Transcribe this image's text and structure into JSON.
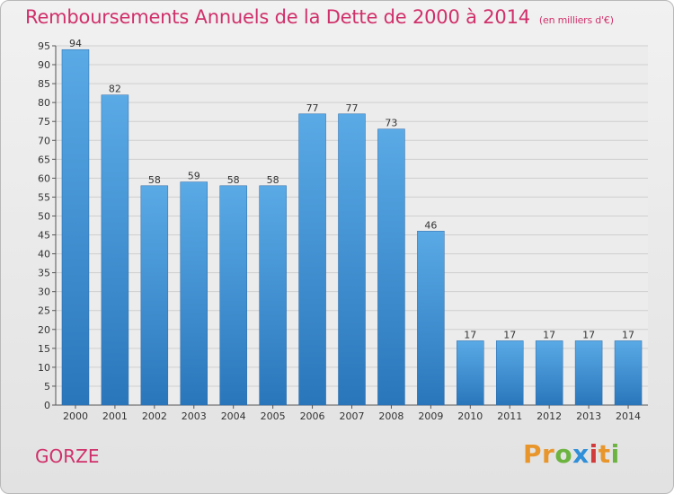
{
  "header": {
    "title": "Remboursements Annuels de la Dette de 2000 à 2014",
    "unit_note": "(en milliers d'€)"
  },
  "footer": {
    "commune": "GORZE",
    "brand": "Proxiti"
  },
  "colors": {
    "title": "#d0306a",
    "bar_top": "#5aaae6",
    "bar_bottom": "#2a76bb",
    "grid": "#cfcfcf",
    "brand_letters": [
      "#e8962c",
      "#e8962c",
      "#6cb33f",
      "#2f8fd8",
      "#d23b3b",
      "#e8962c",
      "#6cb33f"
    ]
  },
  "chart_data": {
    "type": "bar",
    "title": "Remboursements Annuels de la Dette de 2000 à 2014",
    "subtitle": "(en milliers d'€)",
    "xlabel": "",
    "ylabel": "",
    "categories": [
      "2000",
      "2001",
      "2002",
      "2003",
      "2004",
      "2005",
      "2006",
      "2007",
      "2008",
      "2009",
      "2010",
      "2011",
      "2012",
      "2013",
      "2014"
    ],
    "values": [
      94,
      82,
      58,
      59,
      58,
      58,
      77,
      77,
      73,
      46,
      17,
      17,
      17,
      17,
      17
    ],
    "ylim": [
      0,
      95
    ],
    "yticks": [
      0,
      5,
      10,
      15,
      20,
      25,
      30,
      35,
      40,
      45,
      50,
      55,
      60,
      65,
      70,
      75,
      80,
      85,
      90,
      95
    ],
    "grid": true,
    "data_labels": true
  }
}
